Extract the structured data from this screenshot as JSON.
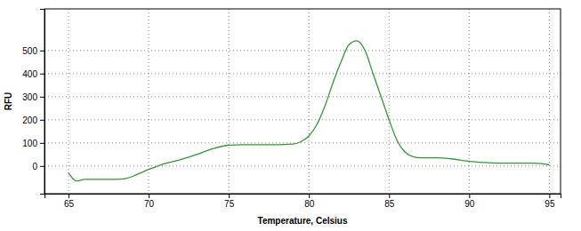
{
  "chart_data": {
    "type": "line",
    "x_label": "Temperature, Celsius",
    "y_label": "RFU",
    "x": [
      65,
      65.5,
      66,
      67,
      68,
      68.5,
      69,
      69.5,
      70,
      70.5,
      71,
      72,
      73,
      74,
      75,
      76,
      77,
      78,
      79,
      79.5,
      80,
      80.5,
      81,
      81.5,
      82,
      82.5,
      83,
      83.5,
      84,
      84.5,
      85,
      85.5,
      86,
      86.5,
      87,
      88,
      89,
      90,
      91,
      92,
      93,
      94,
      94.5,
      95
    ],
    "values": [
      -30,
      -65,
      -58,
      -58,
      -58,
      -55,
      -45,
      -30,
      -15,
      -2,
      10,
      28,
      50,
      75,
      90,
      92,
      92,
      92,
      95,
      105,
      130,
      180,
      260,
      360,
      450,
      525,
      542,
      500,
      400,
      300,
      200,
      110,
      60,
      40,
      35,
      35,
      30,
      20,
      15,
      12,
      12,
      12,
      10,
      5
    ],
    "color": "#339933",
    "xlim": [
      63.5,
      95.7
    ],
    "xticks": [
      65,
      70,
      75,
      80,
      85,
      90,
      95
    ],
    "ylim": [
      -120,
      680
    ],
    "yticks": [
      0,
      100,
      200,
      300,
      400,
      500
    ],
    "grid": true
  }
}
